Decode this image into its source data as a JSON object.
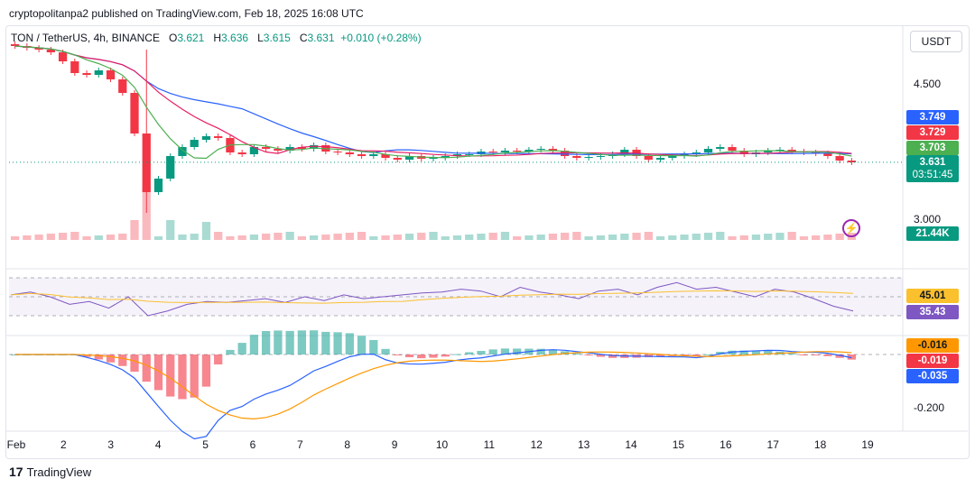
{
  "publisher": "cryptopolitanpa2 published on TradingView.com, Feb 18, 2025 16:08 UTC",
  "header": {
    "symbol": "TON / TetherUS, 4h, BINANCE",
    "o_label": "O",
    "o": "3.621",
    "h_label": "H",
    "h": "3.636",
    "l_label": "L",
    "l": "3.615",
    "c_label": "C",
    "c": "3.631",
    "change": "+0.010 (+0.28%)"
  },
  "currency": "USDT",
  "price_scale": {
    "ticks": [
      "4.500",
      "3.000"
    ]
  },
  "macd_scale": {
    "ticks": [
      "-0.200"
    ]
  },
  "badges": {
    "ma_blue": "3.749",
    "ma_red": "3.729",
    "ma_green": "3.703",
    "last_price": "3.631",
    "countdown": "03:51:45",
    "volume": "21.44K",
    "rsi_ma": "45.01",
    "rsi": "35.43",
    "macd_signal": "-0.016",
    "macd_hist": "-0.019",
    "macd_line": "-0.035"
  },
  "colors": {
    "up": "#089981",
    "down": "#f23645",
    "ma_blue": "#2962ff",
    "ma_red": "#e91e63",
    "ma_green": "#4caf50",
    "rsi": "#7e57c2",
    "rsi_ma": "#fbc02d",
    "macd": "#2962ff",
    "signal": "#ff9800"
  },
  "x_axis": {
    "ticks": [
      "Feb",
      "2",
      "3",
      "4",
      "5",
      "6",
      "7",
      "8",
      "9",
      "10",
      "11",
      "12",
      "13",
      "14",
      "15",
      "16",
      "17",
      "18",
      "19"
    ]
  },
  "branding": {
    "logo": "TradingView",
    "icon": "tradingview-logo-icon"
  },
  "chart_data": {
    "type": "candlestick",
    "title": "TON / TetherUS, 4h, BINANCE",
    "interval": "4h",
    "ohlc_last": {
      "open": 3.621,
      "high": 3.636,
      "low": 3.615,
      "close": 3.631,
      "change": 0.01,
      "change_pct": 0.28
    },
    "y_scale_ticks": [
      4.5,
      3.0
    ],
    "ma_last": {
      "blue": 3.749,
      "red": 3.729,
      "green": 3.703
    },
    "close_series": [
      4.92,
      4.9,
      4.88,
      4.85,
      4.75,
      4.62,
      4.6,
      4.65,
      4.55,
      4.4,
      3.95,
      3.3,
      3.45,
      3.7,
      3.8,
      3.88,
      3.92,
      3.9,
      3.74,
      3.72,
      3.8,
      3.78,
      3.76,
      3.8,
      3.78,
      3.82,
      3.75,
      3.74,
      3.72,
      3.7,
      3.72,
      3.68,
      3.66,
      3.7,
      3.67,
      3.68,
      3.7,
      3.72,
      3.72,
      3.75,
      3.74,
      3.76,
      3.75,
      3.77,
      3.78,
      3.76,
      3.7,
      3.68,
      3.69,
      3.7,
      3.72,
      3.77,
      3.7,
      3.66,
      3.68,
      3.7,
      3.72,
      3.74,
      3.78,
      3.8,
      3.76,
      3.72,
      3.74,
      3.76,
      3.77,
      3.75,
      3.74,
      3.73,
      3.7,
      3.65,
      3.63
    ],
    "volume_last": "21.44K",
    "rsi": {
      "last": 35.43,
      "ma_last": 45.01,
      "series": [
        52,
        55,
        50,
        42,
        45,
        38,
        50,
        30,
        35,
        42,
        45,
        44,
        46,
        48,
        44,
        50,
        46,
        52,
        48,
        50,
        52,
        54,
        55,
        58,
        56,
        50,
        60,
        55,
        52,
        48,
        56,
        58,
        52,
        60,
        65,
        58,
        60,
        55,
        50,
        58,
        55,
        48,
        40,
        35
      ]
    },
    "macd": {
      "macd_last": -0.035,
      "signal_last": -0.016,
      "hist_last": -0.019,
      "y_tick": -0.2
    },
    "x_labels": [
      "Feb",
      "2",
      "3",
      "4",
      "5",
      "6",
      "7",
      "8",
      "9",
      "10",
      "11",
      "12",
      "13",
      "14",
      "15",
      "16",
      "17",
      "18",
      "19"
    ]
  }
}
